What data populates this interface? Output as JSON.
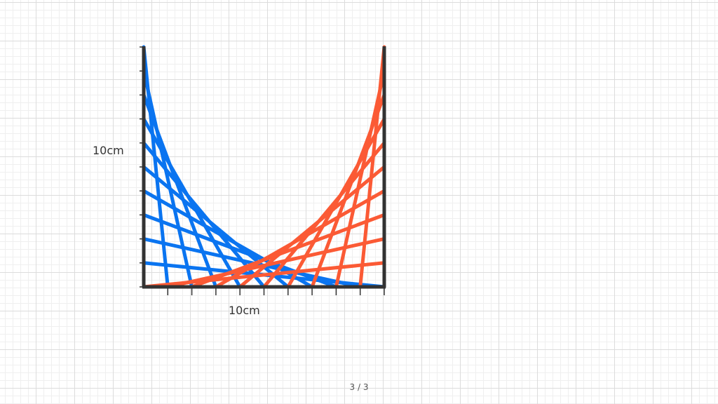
{
  "labels": {
    "vertical": "10cm",
    "horizontal": "10cm"
  },
  "page_indicator": "3 / 3"
}
